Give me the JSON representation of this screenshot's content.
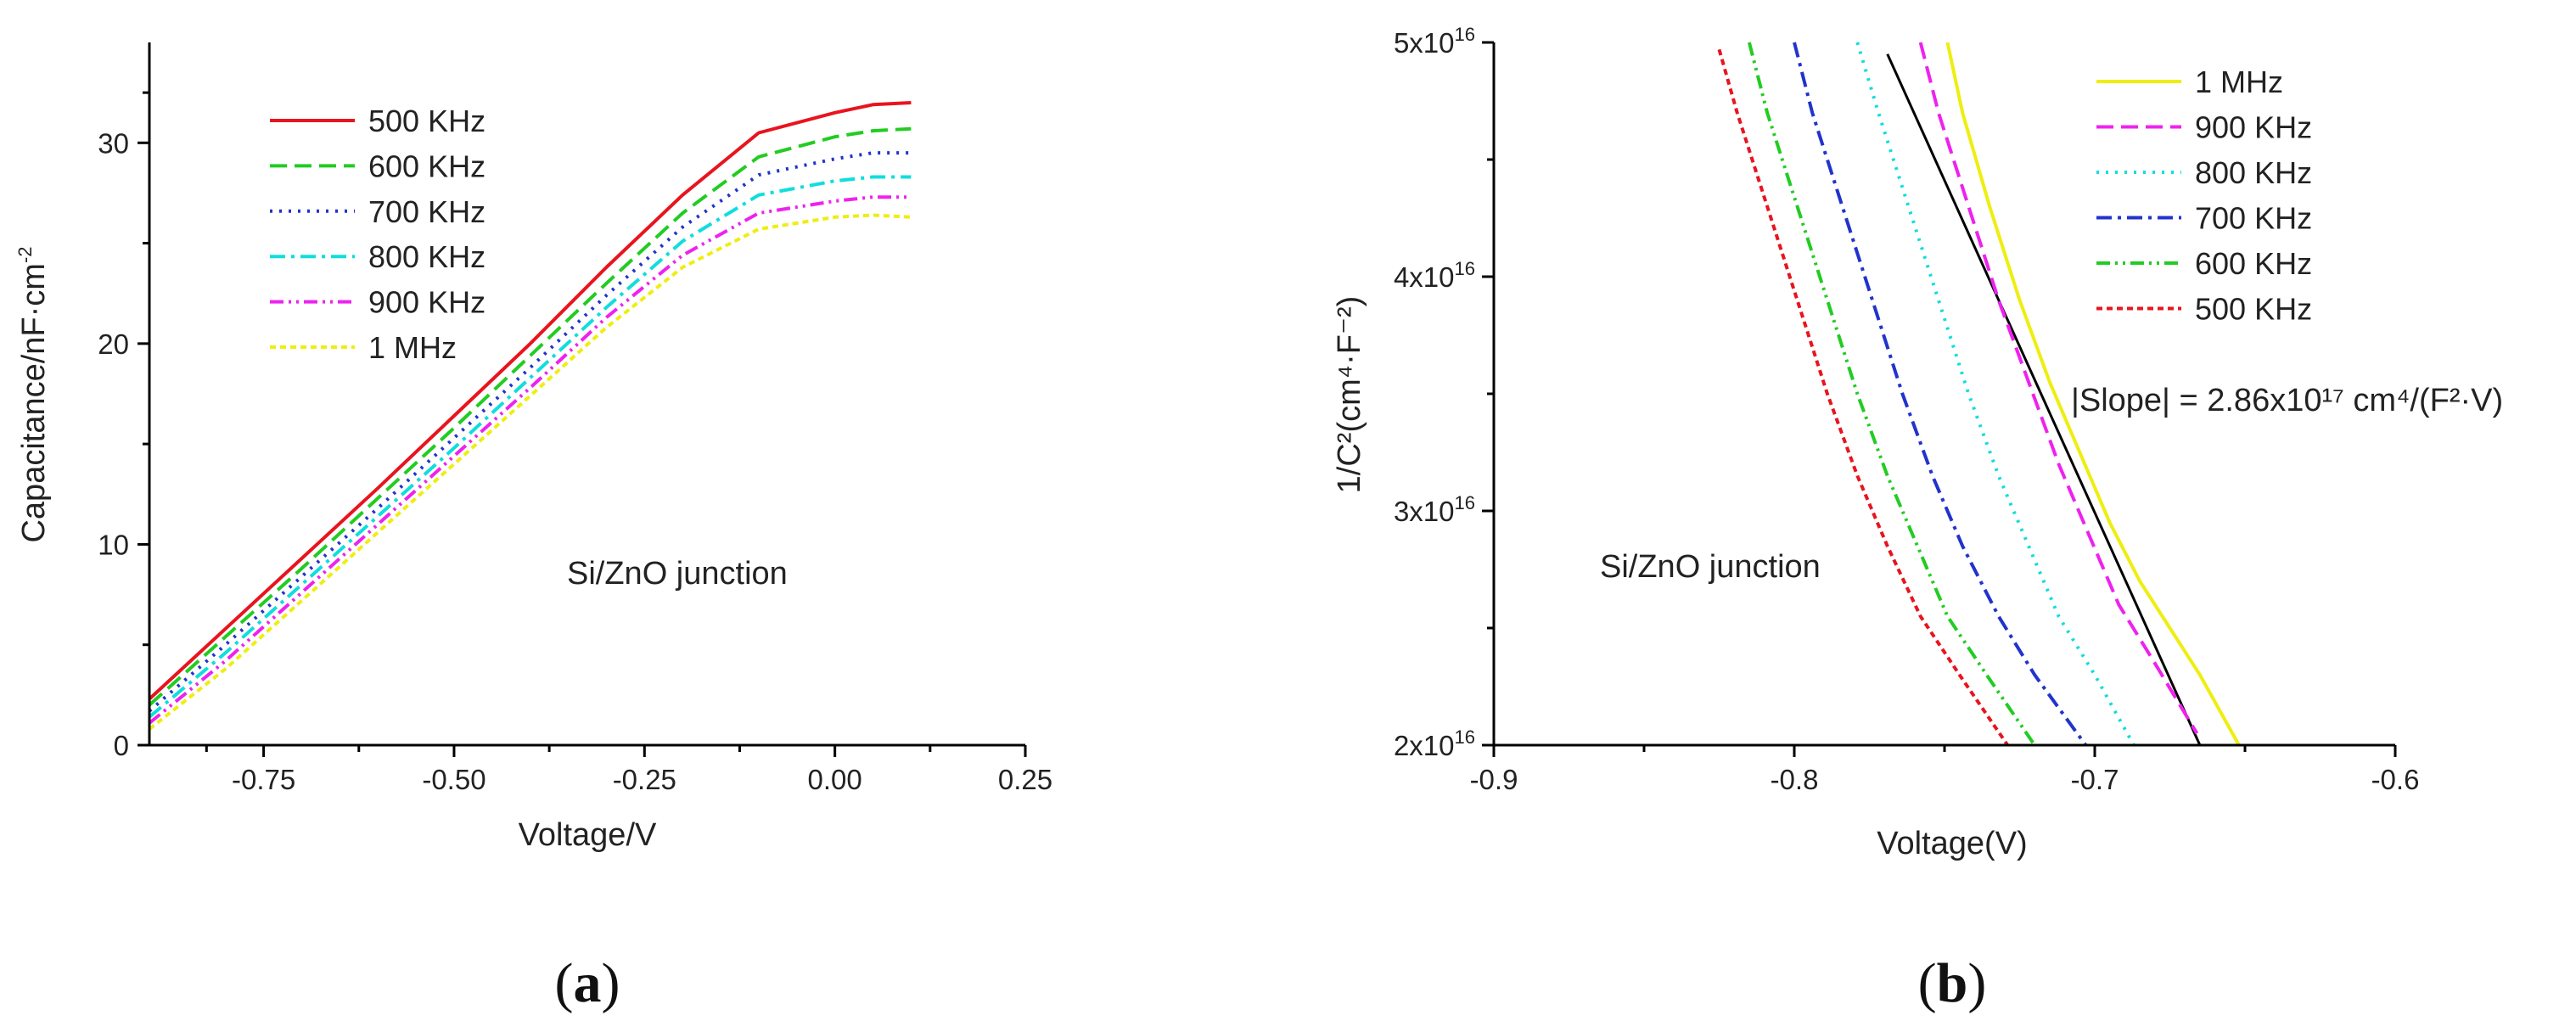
{
  "chart_data": [
    {
      "type": "line",
      "panel": "(a)",
      "panel_letter": "a",
      "xlabel": "Voltage/V",
      "ylabel": "Capacitance/nF·cm",
      "ylabel_sup": "-2",
      "xlim": [
        -0.9,
        0.25
      ],
      "ylim": [
        0,
        35
      ],
      "xticks": [
        -0.75,
        -0.5,
        -0.25,
        0.0,
        0.25
      ],
      "xtick_labels": [
        "-0.75",
        "-0.50",
        "-0.25",
        "0.00",
        "0.25"
      ],
      "yticks": [
        0,
        10,
        20,
        30
      ],
      "ytick_labels": [
        "0",
        "10",
        "20",
        "30"
      ],
      "annotation": "Si/ZnO junction",
      "legend_position": "top-left",
      "series": [
        {
          "name": "500 KHz",
          "color": "#e8141e",
          "dash": "solid",
          "x": [
            -0.9,
            -0.8,
            -0.7,
            -0.6,
            -0.5,
            -0.4,
            -0.3,
            -0.2,
            -0.1,
            0.0,
            0.05,
            0.1
          ],
          "y": [
            2.3,
            5.8,
            9.3,
            12.8,
            16.4,
            20.0,
            23.8,
            27.4,
            30.5,
            31.5,
            31.9,
            32.0
          ]
        },
        {
          "name": "600 KHz",
          "color": "#22cc22",
          "dash": "long",
          "x": [
            -0.9,
            -0.8,
            -0.7,
            -0.6,
            -0.5,
            -0.4,
            -0.3,
            -0.2,
            -0.1,
            0.0,
            0.05,
            0.1
          ],
          "y": [
            2.0,
            5.4,
            8.8,
            12.3,
            15.8,
            19.4,
            23.0,
            26.5,
            29.3,
            30.3,
            30.6,
            30.7
          ]
        },
        {
          "name": "700 KHz",
          "color": "#2233cc",
          "dash": "dot",
          "x": [
            -0.9,
            -0.8,
            -0.7,
            -0.6,
            -0.5,
            -0.4,
            -0.3,
            -0.2,
            -0.1,
            0.0,
            0.05,
            0.1
          ],
          "y": [
            1.7,
            5.0,
            8.4,
            11.8,
            15.3,
            18.8,
            22.4,
            25.8,
            28.4,
            29.2,
            29.5,
            29.5
          ]
        },
        {
          "name": "800 KHz",
          "color": "#11dddd",
          "dash": "dashdot",
          "x": [
            -0.9,
            -0.8,
            -0.7,
            -0.6,
            -0.5,
            -0.4,
            -0.3,
            -0.2,
            -0.1,
            0.0,
            0.05,
            0.1
          ],
          "y": [
            1.4,
            4.6,
            8.0,
            11.4,
            14.8,
            18.3,
            21.8,
            25.1,
            27.4,
            28.1,
            28.3,
            28.3
          ]
        },
        {
          "name": "900 KHz",
          "color": "#ee22ee",
          "dash": "dashdotdot",
          "x": [
            -0.9,
            -0.8,
            -0.7,
            -0.6,
            -0.5,
            -0.4,
            -0.3,
            -0.2,
            -0.1,
            0.0,
            0.05,
            0.1
          ],
          "y": [
            1.1,
            4.2,
            7.6,
            11.0,
            14.4,
            17.8,
            21.3,
            24.4,
            26.5,
            27.1,
            27.3,
            27.3
          ]
        },
        {
          "name": "1 MHz",
          "color": "#eeee11",
          "dash": "shortdash",
          "x": [
            -0.9,
            -0.8,
            -0.7,
            -0.6,
            -0.5,
            -0.4,
            -0.3,
            -0.2,
            -0.1,
            0.0,
            0.05,
            0.1
          ],
          "y": [
            0.8,
            3.8,
            7.2,
            10.6,
            14.0,
            17.4,
            20.8,
            23.8,
            25.7,
            26.3,
            26.4,
            26.3
          ]
        }
      ]
    },
    {
      "type": "line",
      "panel": "(b)",
      "panel_letter": "b",
      "xlabel": "Voltage(V)",
      "ylabel": "1/C²(cm⁴·F⁻²)",
      "xlim": [
        -0.9,
        -0.6
      ],
      "ylim": [
        2e+16,
        5e+16
      ],
      "xticks": [
        -0.9,
        -0.8,
        -0.7,
        -0.6
      ],
      "xtick_labels": [
        "-0.9",
        "-0.8",
        "-0.7",
        "-0.6"
      ],
      "yticks": [
        2e+16,
        3e+16,
        4e+16,
        5e+16
      ],
      "ytick_mantissas": [
        "2x10",
        "3x10",
        "4x10",
        "5x10"
      ],
      "ytick_exponent": "16",
      "annotation": "Si/ZnO junction",
      "fit_annotation": "|Slope| = 2.86x10¹⁷ cm⁴/(F²·V)",
      "legend_position": "top-right",
      "fit_line": {
        "x": [
          -0.769,
          -0.665
        ],
        "y": [
          4.95e+16,
          2e+16
        ],
        "color": "#000000"
      },
      "series": [
        {
          "name": "1 MHz",
          "color": "#eeee11",
          "dash": "solid",
          "x": [
            -0.749,
            -0.744,
            -0.735,
            -0.725,
            -0.715,
            -0.705,
            -0.695,
            -0.685,
            -0.675,
            -0.665,
            -0.652
          ],
          "y": [
            5e+16,
            4.7e+16,
            4.3e+16,
            3.9e+16,
            3.55e+16,
            3.25e+16,
            2.95e+16,
            2.7e+16,
            2.5e+16,
            2.3e+16,
            2e+16
          ]
        },
        {
          "name": "900 KHz",
          "color": "#ee22ee",
          "dash": "long",
          "x": [
            -0.758,
            -0.752,
            -0.742,
            -0.732,
            -0.722,
            -0.712,
            -0.702,
            -0.692,
            -0.68,
            -0.666
          ],
          "y": [
            5e+16,
            4.7e+16,
            4.3e+16,
            3.9e+16,
            3.55e+16,
            3.2e+16,
            2.9e+16,
            2.6e+16,
            2.35e+16,
            2.05e+16
          ]
        },
        {
          "name": "800 KHz",
          "color": "#11dddd",
          "dash": "dot",
          "x": [
            -0.779,
            -0.772,
            -0.762,
            -0.752,
            -0.742,
            -0.732,
            -0.722,
            -0.712,
            -0.7,
            -0.687
          ],
          "y": [
            5e+16,
            4.7e+16,
            4.3e+16,
            3.9e+16,
            3.5e+16,
            3.15e+16,
            2.85e+16,
            2.55e+16,
            2.3e+16,
            2e+16
          ]
        },
        {
          "name": "700 KHz",
          "color": "#2233cc",
          "dash": "dashdot",
          "x": [
            -0.8,
            -0.794,
            -0.784,
            -0.774,
            -0.764,
            -0.754,
            -0.744,
            -0.732,
            -0.72,
            -0.703
          ],
          "y": [
            5e+16,
            4.7e+16,
            4.3e+16,
            3.9e+16,
            3.5e+16,
            3.15e+16,
            2.85e+16,
            2.55e+16,
            2.3e+16,
            2e+16
          ]
        },
        {
          "name": "600 KHz",
          "color": "#22cc22",
          "dash": "dashdotdot",
          "x": [
            -0.815,
            -0.809,
            -0.799,
            -0.789,
            -0.779,
            -0.769,
            -0.759,
            -0.749,
            -0.736,
            -0.72
          ],
          "y": [
            5e+16,
            4.7e+16,
            4.3e+16,
            3.9e+16,
            3.5e+16,
            3.15e+16,
            2.85e+16,
            2.55e+16,
            2.3e+16,
            2e+16
          ]
        },
        {
          "name": "500 KHz",
          "color": "#e8141e",
          "dash": "shortdash",
          "x": [
            -0.825,
            -0.819,
            -0.809,
            -0.799,
            -0.789,
            -0.779,
            -0.769,
            -0.758,
            -0.745,
            -0.729
          ],
          "y": [
            4.97e+16,
            4.7e+16,
            4.3e+16,
            3.9e+16,
            3.5e+16,
            3.15e+16,
            2.85e+16,
            2.55e+16,
            2.3e+16,
            2e+16
          ]
        }
      ]
    }
  ]
}
